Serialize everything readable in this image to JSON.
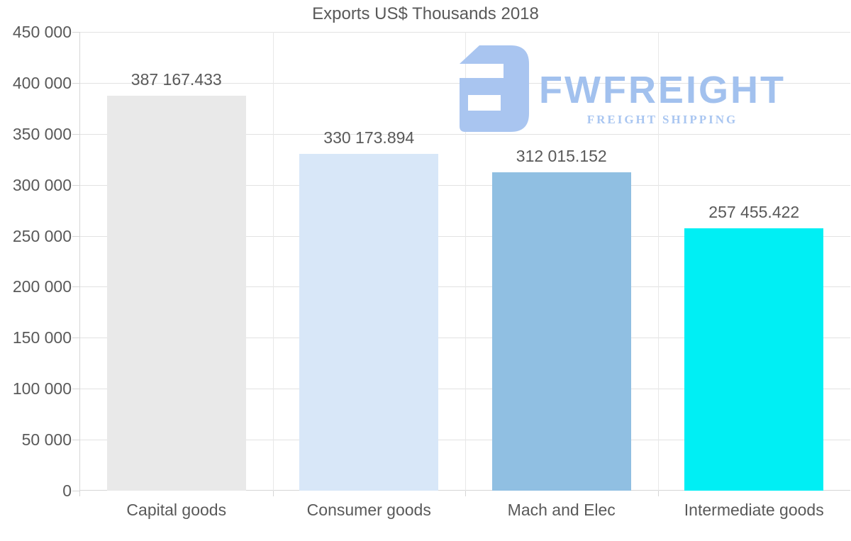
{
  "chart_data": {
    "type": "bar",
    "title": "Exports US$ Thousands 2018",
    "categories": [
      "Capital goods",
      "Consumer goods",
      "Mach and Elec",
      "Intermediate goods"
    ],
    "values": [
      387167.433,
      330173.894,
      312015.152,
      257455.422
    ],
    "value_labels": [
      "387 167.433",
      "330 173.894",
      "312 015.152",
      "257 455.422"
    ],
    "bar_colors": [
      "#e9e9e9",
      "#d8e7f8",
      "#90bfe2",
      "#00eff4"
    ],
    "ylim": [
      0,
      450000
    ],
    "ytick_step": 50000,
    "ytick_labels": [
      "0",
      "50 000",
      "100 000",
      "150 000",
      "200 000",
      "250 000",
      "300 000",
      "350 000",
      "400 000",
      "450 000"
    ],
    "grid": true,
    "legend": "none",
    "xlabel": "",
    "ylabel": "",
    "text_color": "#595959",
    "gridline_color": "#e2e2e2",
    "axis_color": "#d6d6d6"
  },
  "watermark": {
    "name": "FWFREIGHT",
    "subtitle": "FREIGHT SHIPPING",
    "mark_color": "#a9c5f0",
    "name_color": "#a2c1ee",
    "subtitle_color": "#a9c6f1"
  }
}
